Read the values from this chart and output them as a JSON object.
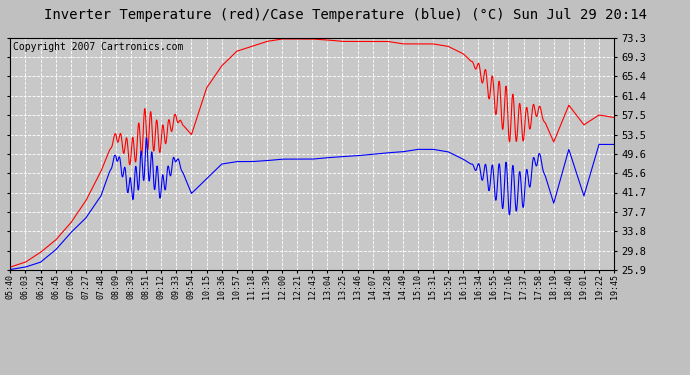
{
  "title": "Inverter Temperature (red)/Case Temperature (blue) (°C) Sun Jul 29 20:14",
  "copyright": "Copyright 2007 Cartronics.com",
  "yticks": [
    25.9,
    29.8,
    33.8,
    37.7,
    41.7,
    45.6,
    49.6,
    53.5,
    57.5,
    61.4,
    65.4,
    69.3,
    73.3
  ],
  "ylim": [
    25.9,
    73.3
  ],
  "xtick_labels": [
    "05:40",
    "06:03",
    "06:24",
    "06:45",
    "07:06",
    "07:27",
    "07:48",
    "08:09",
    "08:30",
    "08:51",
    "09:12",
    "09:33",
    "09:54",
    "10:15",
    "10:36",
    "10:57",
    "11:18",
    "11:39",
    "12:00",
    "12:21",
    "12:43",
    "13:04",
    "13:25",
    "13:46",
    "14:07",
    "14:28",
    "14:49",
    "15:10",
    "15:31",
    "15:52",
    "16:13",
    "16:34",
    "16:55",
    "17:16",
    "17:37",
    "17:58",
    "18:19",
    "18:40",
    "19:01",
    "19:22",
    "19:45"
  ],
  "red_data": [
    26.5,
    27.5,
    29.5,
    32.0,
    35.5,
    40.0,
    46.0,
    53.5,
    49.5,
    55.0,
    52.5,
    57.0,
    53.5,
    63.0,
    67.5,
    70.5,
    71.5,
    72.5,
    73.0,
    73.0,
    73.0,
    72.8,
    72.5,
    72.5,
    72.5,
    72.5,
    72.0,
    72.0,
    72.0,
    71.5,
    70.0,
    67.0,
    62.0,
    57.5,
    55.5,
    59.0,
    52.0,
    59.5,
    55.5,
    57.5,
    57.0
  ],
  "blue_data": [
    26.0,
    26.5,
    27.5,
    30.0,
    33.5,
    36.5,
    41.0,
    49.5,
    42.0,
    49.0,
    42.5,
    49.0,
    41.5,
    44.5,
    47.5,
    48.0,
    48.0,
    48.2,
    48.5,
    48.5,
    48.5,
    48.8,
    49.0,
    49.2,
    49.5,
    49.8,
    50.0,
    50.5,
    50.5,
    50.0,
    48.5,
    46.5,
    44.0,
    42.5,
    42.0,
    49.5,
    39.5,
    50.5,
    41.0,
    51.5,
    51.5
  ],
  "fig_bg_color": "#c0c0c0",
  "plot_bg_color": "#c8c8c8",
  "grid_color": "#ffffff",
  "red_color": "#ff0000",
  "blue_color": "#0000ff",
  "title_fontsize": 10,
  "copyright_fontsize": 7
}
